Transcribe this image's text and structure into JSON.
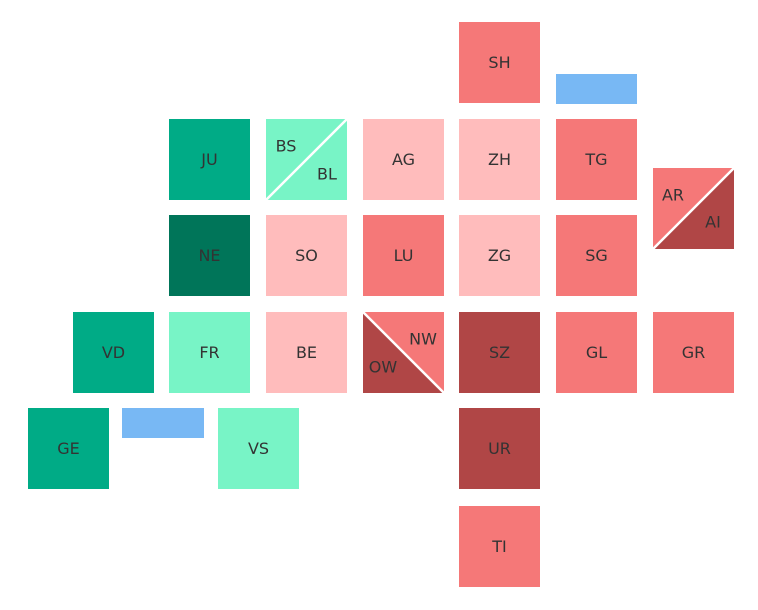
{
  "colors": {
    "dark_green": "#007559",
    "green": "#00ab86",
    "mint": "#78f4c6",
    "light_pink": "#ffbcbc",
    "pink": "#f57878",
    "dark_red": "#b04646",
    "lake_blue": "#78b8f4"
  },
  "cantons": [
    {
      "code": "SH",
      "color": "pink"
    },
    {
      "code": "JU",
      "color": "green"
    },
    {
      "code": "AG",
      "color": "light_pink"
    },
    {
      "code": "ZH",
      "color": "light_pink"
    },
    {
      "code": "TG",
      "color": "pink"
    },
    {
      "code": "NE",
      "color": "dark_green"
    },
    {
      "code": "SO",
      "color": "light_pink"
    },
    {
      "code": "LU",
      "color": "pink"
    },
    {
      "code": "ZG",
      "color": "light_pink"
    },
    {
      "code": "SG",
      "color": "pink"
    },
    {
      "code": "VD",
      "color": "green"
    },
    {
      "code": "FR",
      "color": "mint"
    },
    {
      "code": "BE",
      "color": "light_pink"
    },
    {
      "code": "SZ",
      "color": "dark_red"
    },
    {
      "code": "GL",
      "color": "pink"
    },
    {
      "code": "GR",
      "color": "pink"
    },
    {
      "code": "GE",
      "color": "green"
    },
    {
      "code": "VS",
      "color": "mint"
    },
    {
      "code": "UR",
      "color": "dark_red"
    },
    {
      "code": "TI",
      "color": "pink"
    }
  ],
  "split_cantons": [
    {
      "top": {
        "code": "BS",
        "color": "mint"
      },
      "bottom": {
        "code": "BL",
        "color": "mint"
      }
    },
    {
      "top": {
        "code": "AR",
        "color": "pink"
      },
      "bottom": {
        "code": "AI",
        "color": "dark_red"
      }
    },
    {
      "top": {
        "code": "NW",
        "color": "pink"
      },
      "bottom": {
        "code": "OW",
        "color": "dark_red"
      }
    }
  ]
}
